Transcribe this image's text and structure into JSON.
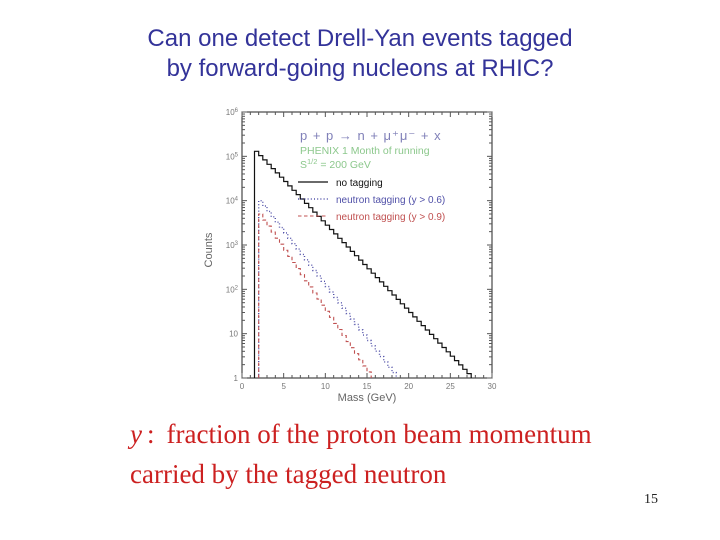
{
  "slide": {
    "title_line1": "Can one detect Drell-Yan events tagged",
    "title_line2": "by forward-going nucleons at RHIC?",
    "title_color": "#333399",
    "page_number": "15",
    "caption": {
      "symbol": "y",
      "colon": ":",
      "line1": "fraction of the proton beam momentum",
      "line2": "carried by the tagged neutron",
      "color": "#cc2020"
    }
  },
  "chart_data": {
    "type": "line",
    "style": "step-histogram",
    "title": "p + p → n + μ⁺μ⁻ + x",
    "title_color": "#8080b8",
    "annotations": {
      "line1": "PHENIX 1 Month of running",
      "s_base": "S",
      "s_sup": "1/2",
      "s_rest": " = 200 GeV",
      "color": "#8cc88c"
    },
    "xlabel": "Mass (GeV)",
    "ylabel": "Counts",
    "xlim": [
      0,
      30
    ],
    "x_major_ticks": [
      0,
      5,
      10,
      15,
      20,
      25,
      30
    ],
    "y_scale": "log",
    "y_decades": 6,
    "ylim": [
      1,
      1000000
    ],
    "y_ticks": [
      {
        "base": "10",
        "sup": "6"
      },
      {
        "base": "10",
        "sup": "5"
      },
      {
        "base": "10",
        "sup": "4"
      },
      {
        "base": "10",
        "sup": "3"
      },
      {
        "base": "10",
        "sup": "2"
      },
      {
        "base": "10",
        "sup": ""
      },
      {
        "base": "1",
        "sup": ""
      }
    ],
    "grid": false,
    "legend_position": "upper-right-inside",
    "bin_width_gev": 0.5,
    "series": [
      {
        "name": "no tagging",
        "color": "#111111",
        "line": "solid",
        "points": [
          [
            1.5,
            130000
          ],
          [
            5,
            27000
          ],
          [
            10,
            2800
          ],
          [
            15,
            290
          ],
          [
            20,
            30
          ],
          [
            25,
            3.1
          ],
          [
            27.5,
            1
          ]
        ]
      },
      {
        "name": "neutron tagging (y > 0.6)",
        "color": "#5050a8",
        "line": "dotted",
        "points": [
          [
            2,
            10000
          ],
          [
            5,
            1870
          ],
          [
            10,
            115
          ],
          [
            15,
            7
          ],
          [
            18.5,
            1
          ]
        ]
      },
      {
        "name": "neutron tagging (y > 0.9)",
        "color": "#c05050",
        "line": "dashed",
        "points": [
          [
            2,
            5000
          ],
          [
            5,
            760
          ],
          [
            10,
            32
          ],
          [
            15.5,
            1
          ]
        ]
      }
    ]
  }
}
